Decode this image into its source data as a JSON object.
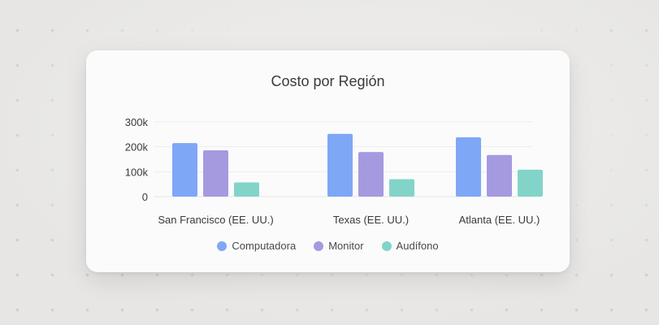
{
  "chart_data": {
    "type": "bar",
    "title": "Costo por Región",
    "categories": [
      "San Francisco (EE. UU.)",
      "Texas (EE. UU.)",
      "Atlanta (EE. UU.)"
    ],
    "series": [
      {
        "name": "Computadora",
        "values": [
          215000,
          252000,
          238000
        ],
        "color": "#7ea7f6"
      },
      {
        "name": "Monitor",
        "values": [
          186000,
          179000,
          167000
        ],
        "color": "#a59ae0"
      },
      {
        "name": "Audífono",
        "values": [
          57000,
          70000,
          108000
        ],
        "color": "#82d4c8"
      }
    ],
    "yticks": [
      0,
      100000,
      200000,
      300000
    ],
    "ytick_labels": [
      "0",
      "100k",
      "200k",
      "300k"
    ],
    "ylim": [
      0,
      300000
    ],
    "xlabel": "",
    "ylabel": "",
    "grid": true,
    "legend_position": "bottom"
  }
}
